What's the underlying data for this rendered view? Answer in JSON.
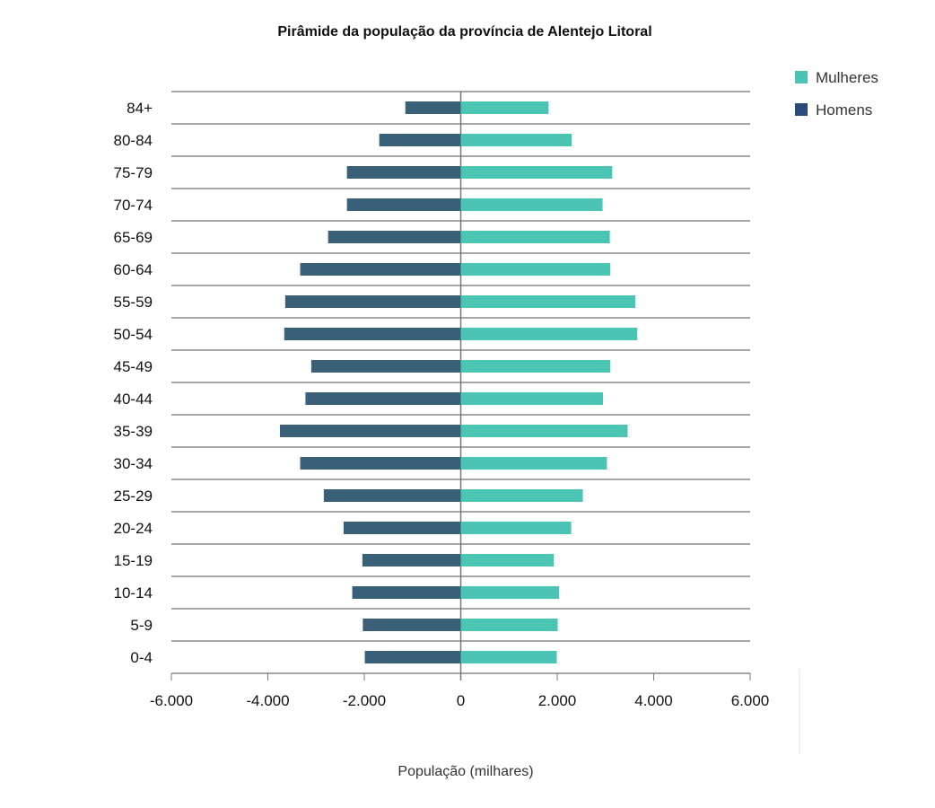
{
  "chart_data": {
    "type": "bar",
    "orientation": "horizontal-population-pyramid",
    "title": "Pirâmide da população da província de Alentejo Litoral",
    "xlabel": "População (milhares)",
    "ylabel": "",
    "xlim": [
      -6000,
      6000
    ],
    "xticks": [
      -6000,
      -4000,
      -2000,
      0,
      2000,
      4000,
      6000
    ],
    "xtick_labels": [
      "-6.000",
      "-4.000",
      "-2.000",
      "0",
      "2.000",
      "4.000",
      "6.000"
    ],
    "grid": true,
    "legend_position": "top-right",
    "categories": [
      "84+",
      "80-84",
      "75-79",
      "70-74",
      "65-69",
      "60-64",
      "55-59",
      "50-54",
      "45-49",
      "40-44",
      "35-39",
      "30-34",
      "25-29",
      "20-24",
      "15-19",
      "10-14",
      "5-9",
      "0-4"
    ],
    "series": [
      {
        "name": "Mulheres",
        "color": "#4cc4b4",
        "values": [
          1820,
          2300,
          3140,
          2940,
          3090,
          3100,
          3620,
          3660,
          3100,
          2950,
          3460,
          3030,
          2530,
          2290,
          1930,
          2040,
          2010,
          1990
        ]
      },
      {
        "name": "Homens",
        "color": "#3a5f78",
        "legend_color": "#2c4a78",
        "values": [
          -1150,
          -1690,
          -2360,
          -2360,
          -2750,
          -3330,
          -3640,
          -3660,
          -3100,
          -3220,
          -3750,
          -3330,
          -2840,
          -2430,
          -2040,
          -2250,
          -2030,
          -1990
        ]
      }
    ]
  }
}
